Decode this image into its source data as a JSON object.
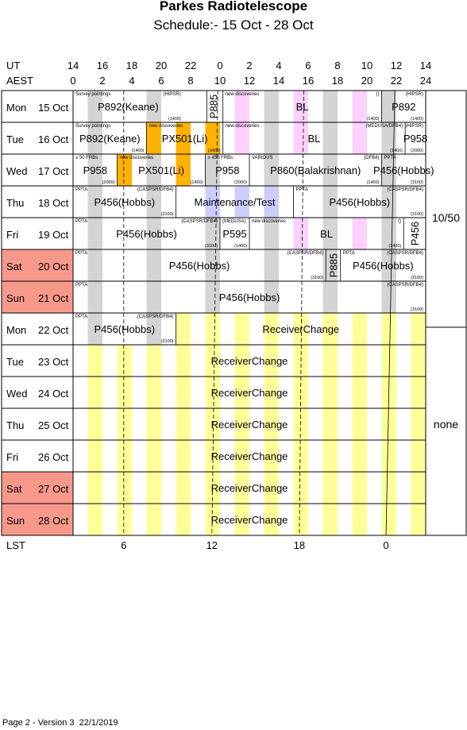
{
  "header": {
    "title": "Parkes Radiotelescope",
    "subtitle": "Schedule:- 15 Oct - 28 Oct"
  },
  "footer": "Page 2 - Version 3  22/1/2019",
  "chart_data": {
    "type": "table",
    "axes": {
      "ut_label": "UT",
      "aest_label": "AEST",
      "lst_label": "LST",
      "ut_ticks": [
        "14",
        "16",
        "18",
        "20",
        "22",
        "0",
        "2",
        "4",
        "6",
        "8",
        "10",
        "12",
        "14"
      ],
      "aest_ticks": [
        "0",
        "2",
        "4",
        "6",
        "8",
        "10",
        "12",
        "14",
        "16",
        "18",
        "20",
        "22",
        "24"
      ],
      "lst_ticks": [
        "6",
        "12",
        "18",
        "0"
      ],
      "lst_tick_aest_hours": [
        3.45,
        9.45,
        15.4,
        21.3
      ]
    },
    "colors": {
      "weekend": "#f7998a",
      "grey": "#d4d4d4",
      "pink": "#fdd0fd",
      "yellow": "#ffff99",
      "orange": "#ffb300",
      "lavender": "#ccccff"
    },
    "days": [
      {
        "day": "Mon",
        "date": "15 Oct",
        "weekend": false
      },
      {
        "day": "Tue",
        "date": "16 Oct",
        "weekend": false
      },
      {
        "day": "Wed",
        "date": "17 Oct",
        "weekend": false
      },
      {
        "day": "Thu",
        "date": "18 Oct",
        "weekend": false
      },
      {
        "day": "Fri",
        "date": "19 Oct",
        "weekend": false
      },
      {
        "day": "Sat",
        "date": "20 Oct",
        "weekend": true
      },
      {
        "day": "Sun",
        "date": "21 Oct",
        "weekend": true
      },
      {
        "day": "Mon",
        "date": "22 Oct",
        "weekend": false
      },
      {
        "day": "Tue",
        "date": "23 Oct",
        "weekend": false
      },
      {
        "day": "Wed",
        "date": "24 Oct",
        "weekend": false
      },
      {
        "day": "Thu",
        "date": "25 Oct",
        "weekend": false
      },
      {
        "day": "Fri",
        "date": "26 Oct",
        "weekend": false
      },
      {
        "day": "Sat",
        "date": "27 Oct",
        "weekend": true
      },
      {
        "day": "Sun",
        "date": "28 Oct",
        "weekend": true
      }
    ],
    "receivers": [
      {
        "label": "10/50",
        "first_row": 0,
        "last_row": 7
      },
      {
        "label": "none",
        "first_row": 7,
        "last_row": 13
      }
    ],
    "bars": {
      "light_grey": [
        [
          1,
          2
        ],
        [
          5,
          6
        ],
        [
          9,
          10
        ],
        [
          17,
          18
        ],
        [
          21,
          22
        ]
      ],
      "grey_weekday": [
        [
          1,
          2
        ],
        [
          5,
          6
        ],
        [
          9,
          10
        ],
        [
          17,
          18
        ],
        [
          21,
          22
        ],
        [
          13,
          14
        ]
      ],
      "pink": [
        [
          11,
          12
        ],
        [
          15,
          16
        ],
        [
          19,
          20
        ]
      ],
      "yellow": [
        [
          1,
          2
        ],
        [
          3,
          4
        ],
        [
          5,
          6
        ],
        [
          7,
          8
        ],
        [
          9,
          10
        ],
        [
          11,
          12
        ],
        [
          13,
          14
        ],
        [
          15,
          16
        ],
        [
          17,
          18
        ],
        [
          19,
          20
        ],
        [
          21,
          22
        ],
        [
          23,
          24
        ]
      ]
    },
    "rows": [
      {
        "row": 0,
        "bars": "mixed",
        "blocks": [
          {
            "start": 0,
            "end": 7.5,
            "label": "P892(Keane)",
            "top": "Survey pointings",
            "rtop": "(HIPSR)",
            "sub": "(1400)"
          },
          {
            "start": 9.1,
            "end": 10,
            "label": "P885",
            "vertical": true,
            "fill": "#ffffff"
          },
          {
            "start": 10.2,
            "end": 21,
            "label": "BL",
            "top": "new discoveries",
            "pinkBars": true,
            "sub": "(1400)",
            "rtop": "()"
          },
          {
            "start": 21,
            "end": 24,
            "label": "P892",
            "rtop": "(HIPSR)",
            "sub": "(1400)"
          }
        ]
      },
      {
        "row": 1,
        "blocks": [
          {
            "start": 0,
            "end": 5,
            "label": "P892(Keane)",
            "top": "Survey pointings",
            "sub": "(1400)"
          },
          {
            "start": 5,
            "end": 10.2,
            "label": "PX501(Li)",
            "top": "new discoveries",
            "orange": [
              [
                5,
                6
              ],
              [
                7,
                8
              ],
              [
                9,
                10
              ]
            ],
            "sub": "(1400)"
          },
          {
            "start": 10.2,
            "end": 22.6,
            "label": "BL",
            "top": "new discoveries",
            "rtop": "(MEDUSA/DFB4)",
            "sub": "(1400)",
            "pinkBars": true
          },
          {
            "start": 22.6,
            "end": 24,
            "label": "P958",
            "rtop": "(HIPSR)",
            "sub": "(2000)"
          }
        ]
      },
      {
        "row": 2,
        "blocks": [
          {
            "start": 0,
            "end": 3,
            "label": "P958",
            "top": "≥ 50  FRBs",
            "sub": "(2000)"
          },
          {
            "start": 3,
            "end": 9,
            "label": "PX501(Li)",
            "top": "new discoveries",
            "orange": [
              [
                3,
                4
              ],
              [
                7,
                8
              ]
            ],
            "sub": "(1400)"
          },
          {
            "start": 9,
            "end": 12,
            "label": "P958",
            "top": "≥ 450 FRBs",
            "sub": "(2000)"
          },
          {
            "start": 12,
            "end": 21,
            "label": "P860(Balakrishnan)",
            "top": "VARIOUS",
            "rtop": "(DFB4)",
            "sub": "(1400)"
          },
          {
            "start": 21,
            "end": 24,
            "label": "P456(Hobbs)",
            "top": "PPTA",
            "sub": "(3100)"
          }
        ]
      },
      {
        "row": 3,
        "blocks": [
          {
            "start": 0,
            "end": 7,
            "label": "P456(Hobbs)",
            "top": "PPTA",
            "rtop": "(CASPSR/DFB4)",
            "sub": "(3100)"
          },
          {
            "start": 7,
            "end": 15,
            "label": "Maintenance/Test",
            "lavender": [
              [
                9,
                10
              ],
              [
                11,
                12
              ],
              [
                13,
                14
              ]
            ]
          },
          {
            "start": 15,
            "end": 24,
            "label": "P456(Hobbs)",
            "top": "PPTA",
            "rtop": "(CASPSR/DFB4)",
            "sub": "(3100)"
          }
        ]
      },
      {
        "row": 4,
        "blocks": [
          {
            "start": 0,
            "end": 10,
            "label": "P456(Hobbs)",
            "top": "PPTA",
            "rtop": "(CASPSR/DFB4)",
            "sub": "(3100)"
          },
          {
            "start": 10,
            "end": 12,
            "label": "P595",
            "top": "(MEDUSA)",
            "sub": "(1400)"
          },
          {
            "start": 12,
            "end": 22.5,
            "label": "BL",
            "top": "new discoveries",
            "pinkBars": true,
            "rtop": "()",
            "sub": "(1400)"
          },
          {
            "start": 22.5,
            "end": 24,
            "label": "P456",
            "vertical": true
          }
        ]
      },
      {
        "row": 5,
        "blocks": [
          {
            "start": 0,
            "end": 17.2,
            "label": "P456(Hobbs)",
            "top": "PPTA",
            "rtop": "(CASPSR/DFB4)",
            "sub": "(3100)"
          },
          {
            "start": 17.2,
            "end": 18.2,
            "label": "P885",
            "vertical": true
          },
          {
            "start": 18.2,
            "end": 24,
            "label": "P456(Hobbs)",
            "top": "PPTA",
            "rtop": "(CASPSR/DFB4)",
            "sub": "(3100)"
          }
        ]
      },
      {
        "row": 6,
        "blocks": [
          {
            "start": 0,
            "end": 24,
            "label": "P456(Hobbs)",
            "top": "PPTA",
            "rtop": "(CASPSR/DFB4)",
            "sub": "(3100)"
          }
        ]
      },
      {
        "row": 7,
        "blocks": [
          {
            "start": 0,
            "end": 7,
            "label": "P456(Hobbs)",
            "top": "PPTA",
            "rtop": "(CASPSR/DFB4)",
            "sub": "(3100)"
          },
          {
            "start": 7,
            "end": 24,
            "label": "ReceiverChange",
            "yellowBars": true
          }
        ]
      },
      {
        "row": 8,
        "blocks": [
          {
            "start": 0,
            "end": 24,
            "label": "ReceiverChange",
            "yellowBars": true
          }
        ]
      },
      {
        "row": 9,
        "blocks": [
          {
            "start": 0,
            "end": 24,
            "label": "ReceiverChange",
            "yellowBars": true
          }
        ]
      },
      {
        "row": 10,
        "blocks": [
          {
            "start": 0,
            "end": 24,
            "label": "ReceiverChange",
            "yellowBars": true
          }
        ]
      },
      {
        "row": 11,
        "blocks": [
          {
            "start": 0,
            "end": 24,
            "label": "ReceiverChange",
            "yellowBars": true
          }
        ]
      },
      {
        "row": 12,
        "blocks": [
          {
            "start": 0,
            "end": 24,
            "label": "ReceiverChange",
            "yellowBars": true
          }
        ]
      },
      {
        "row": 13,
        "blocks": [
          {
            "start": 0,
            "end": 24,
            "label": "ReceiverChange",
            "yellowBars": true
          }
        ]
      }
    ]
  }
}
